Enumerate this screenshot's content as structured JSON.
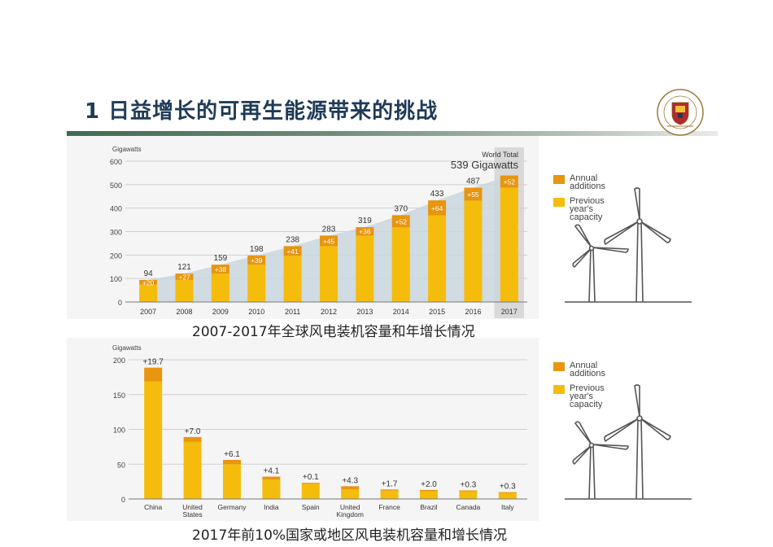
{
  "page": {
    "title": "1 日益增长的可再生能源带来的挑战",
    "caption1": "2007-2017年全球风电装机容量和年增长情况",
    "caption2": "2017年前10%国家或地区风电装机容量和增长情况"
  },
  "colors": {
    "annual": "#e8950f",
    "previous": "#f5bc0b",
    "area": "#c9d6de",
    "highlight": "#d9d9d9",
    "title": "#1f3b57"
  },
  "icons": [
    "university-seal-icon",
    "wind-turbine-icon"
  ],
  "legend": {
    "annual": "Annual additions",
    "annual_l1": "Annual",
    "annual_l2": "additions",
    "previous_l1": "Previous",
    "previous_l2": "year's",
    "previous_l3": "capacity"
  },
  "chart_data": [
    {
      "type": "bar",
      "stacked": true,
      "ylabel": "Gigawatts",
      "ylim": [
        0,
        600
      ],
      "yticks": [
        0,
        100,
        200,
        300,
        400,
        500,
        600
      ],
      "annotation_l1": "World Total",
      "annotation_l2": "539 Gigawatts",
      "categories": [
        "2007",
        "2008",
        "2009",
        "2010",
        "2011",
        "2012",
        "2013",
        "2014",
        "2015",
        "2016",
        "2017"
      ],
      "totals": [
        94,
        121,
        159,
        198,
        238,
        283,
        319,
        370,
        433,
        487,
        539
      ],
      "series": [
        {
          "name": "Previous year's capacity",
          "values": [
            74,
            94,
            121,
            159,
            197,
            238,
            283,
            318,
            369,
            432,
            487
          ]
        },
        {
          "name": "Annual additions",
          "values": [
            20,
            27,
            38,
            39,
            41,
            45,
            36,
            52,
            64,
            55,
            52
          ]
        }
      ],
      "addition_labels": [
        "+20",
        "+27",
        "+38",
        "+39",
        "+41",
        "+45",
        "+36",
        "+52",
        "+64",
        "+55",
        "+52"
      ],
      "total_labels": [
        "94",
        "121",
        "159",
        "198",
        "238",
        "283",
        "319",
        "370",
        "433",
        "487",
        ""
      ],
      "grid": true,
      "legend_position": "right"
    },
    {
      "type": "bar",
      "stacked": true,
      "ylabel": "Gigawatts",
      "ylim": [
        0,
        200
      ],
      "yticks": [
        0,
        50,
        100,
        150,
        200
      ],
      "categories": [
        "China",
        "United States",
        "Germany",
        "India",
        "Spain",
        "United Kingdom",
        "France",
        "Brazil",
        "Canada",
        "Italy"
      ],
      "category_lines": [
        [
          "China"
        ],
        [
          "United",
          "States"
        ],
        [
          "Germany"
        ],
        [
          "India"
        ],
        [
          "Spain"
        ],
        [
          "United",
          "Kingdom"
        ],
        [
          "France"
        ],
        [
          "Brazil"
        ],
        [
          "Canada"
        ],
        [
          "Italy"
        ]
      ],
      "series": [
        {
          "name": "Previous year's capacity",
          "values": [
            169,
            82,
            50,
            28,
            23,
            14,
            12,
            11,
            12,
            9.5
          ]
        },
        {
          "name": "Annual additions",
          "values": [
            19.7,
            7.0,
            6.1,
            4.1,
            0.1,
            4.3,
            1.7,
            2.0,
            0.3,
            0.3
          ]
        }
      ],
      "addition_labels": [
        "+19.7",
        "+7.0",
        "+6.1",
        "+4.1",
        "+0.1",
        "+4.3",
        "+1.7",
        "+2.0",
        "+0.3",
        "+0.3"
      ],
      "grid": true,
      "legend_position": "right"
    }
  ]
}
